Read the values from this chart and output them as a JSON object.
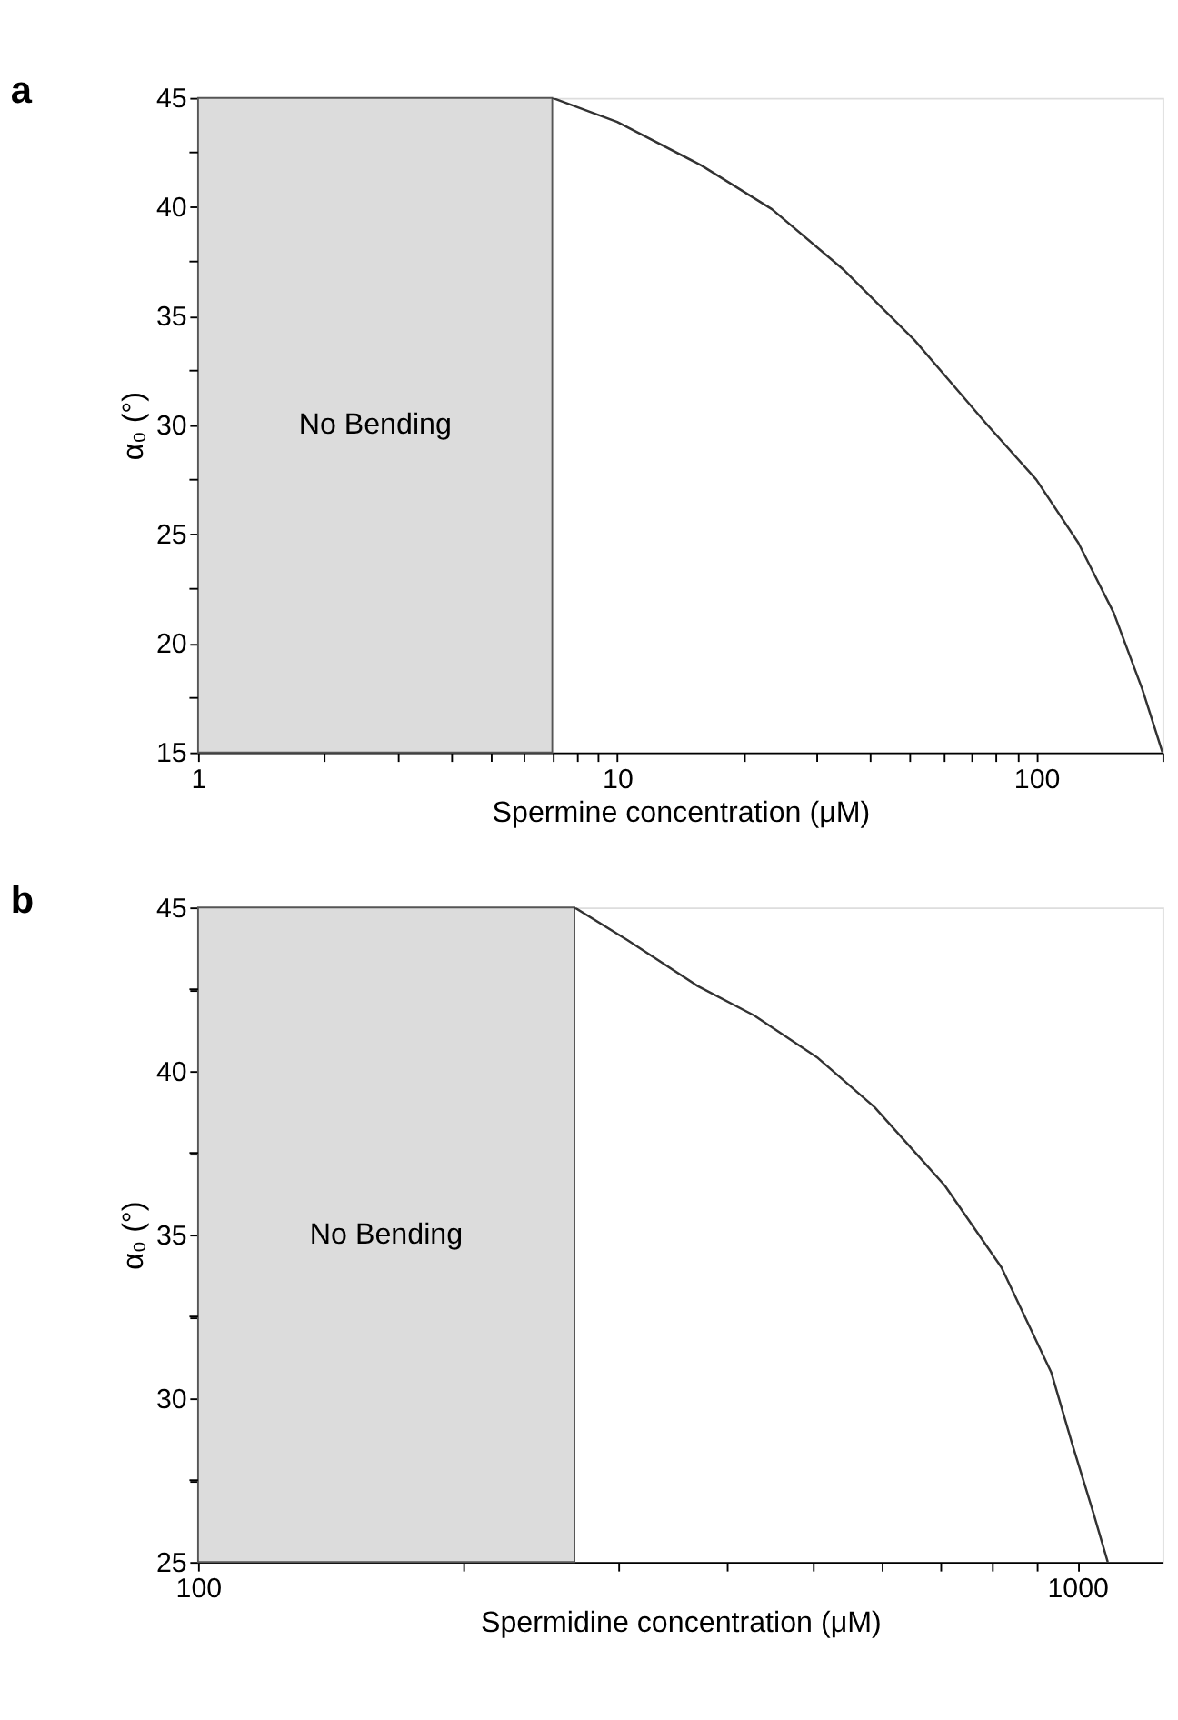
{
  "chart_data": [
    {
      "type": "line",
      "title": "a",
      "xlabel": "Spermine concentration (μM)",
      "ylabel": "α₀ (°)",
      "log": "x",
      "xlim": [
        1,
        200
      ],
      "ylim": [
        15,
        45
      ],
      "xticks": [
        1,
        {
          "value": 2,
          "label": null
        },
        {
          "value": 3,
          "label": null
        },
        {
          "value": 4,
          "label": null
        },
        {
          "value": 5,
          "label": null
        },
        {
          "value": 6,
          "label": null
        },
        {
          "value": 7,
          "label": null
        },
        {
          "value": 8,
          "label": null
        },
        {
          "value": 9,
          "label": null
        },
        10,
        {
          "value": 20,
          "label": null
        },
        {
          "value": 30,
          "label": null
        },
        {
          "value": 40,
          "label": null
        },
        {
          "value": 50,
          "label": null
        },
        {
          "value": 60,
          "label": null
        },
        {
          "value": 70,
          "label": null
        },
        {
          "value": 80,
          "label": null
        },
        {
          "value": 90,
          "label": null
        },
        100,
        {
          "value": 200,
          "label": null
        }
      ],
      "yticks": [
        15,
        {
          "value": 17.5,
          "label": null
        },
        20,
        {
          "value": 22.5,
          "label": null
        },
        25,
        {
          "value": 27.5,
          "label": null
        },
        30,
        {
          "value": 32.5,
          "label": null
        },
        35,
        {
          "value": 37.5,
          "label": null
        },
        40,
        {
          "value": 42.5,
          "label": null
        },
        45
      ],
      "grid": false,
      "line_style": "solid",
      "marker": "none",
      "bands": [
        {
          "axis": "x",
          "from": 1,
          "to": 7,
          "label": "No Bending",
          "color": "#dcdcdc"
        }
      ],
      "series": [
        {
          "color": "#333333",
          "x": [
            7,
            10,
            15.9,
            23.4,
            34.8,
            51.2,
            75.7,
            100,
            126,
            153,
            179,
            200
          ],
          "values": [
            45,
            43.9,
            41.9,
            39.9,
            37.1,
            33.9,
            30.1,
            27.5,
            24.6,
            21.4,
            17.9,
            15
          ]
        }
      ]
    },
    {
      "type": "line",
      "title": "b",
      "xlabel": "Spermidine concentration (μM)",
      "ylabel": "α₀ (°)",
      "log": "x",
      "xlim": [
        100,
        1250
      ],
      "ylim": [
        25,
        45
      ],
      "xticks": [
        100,
        {
          "value": 200,
          "label": null
        },
        {
          "value": 300,
          "label": null
        },
        {
          "value": 400,
          "label": null
        },
        {
          "value": 500,
          "label": null
        },
        {
          "value": 600,
          "label": null
        },
        {
          "value": 700,
          "label": null
        },
        {
          "value": 800,
          "label": null
        },
        {
          "value": 900,
          "label": null
        },
        1000
      ],
      "yticks": [
        25,
        {
          "value": 27.5,
          "label": null
        },
        30,
        {
          "value": 32.5,
          "label": null
        },
        35,
        {
          "value": 37.5,
          "label": null
        },
        40,
        {
          "value": 42.5,
          "label": null
        },
        45
      ],
      "grid": false,
      "line_style": "solid",
      "marker": "none",
      "bands": [
        {
          "axis": "x",
          "from": 100,
          "to": 268,
          "label": "No Bending",
          "color": "#dcdcdc"
        }
      ],
      "series": [
        {
          "color": "#333333",
          "x": [
            268,
            308,
            370,
            429,
            507,
            588,
            707,
            820,
            934,
            987,
            1043,
            1083
          ],
          "values": [
            45,
            44.0,
            42.6,
            41.7,
            40.4,
            38.9,
            36.5,
            34.0,
            30.8,
            28.6,
            26.5,
            25
          ]
        }
      ]
    }
  ]
}
